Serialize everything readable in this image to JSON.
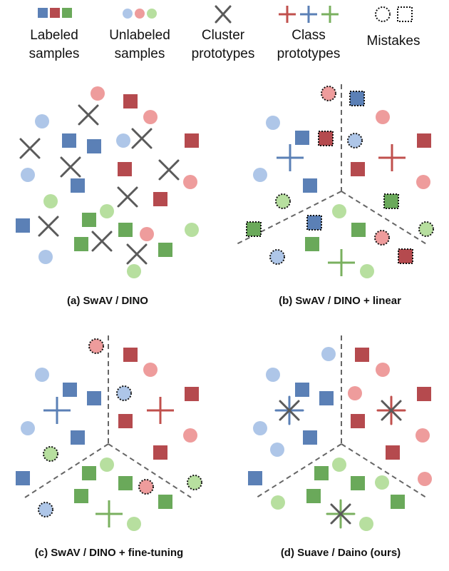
{
  "colors": {
    "blue_fill": "#5b80b6",
    "red_fill": "#b54a4e",
    "green_fill": "#6aa95a",
    "blue_light": "#aec6e8",
    "red_light": "#ee9c9c",
    "green_light": "#b7df9f",
    "cross_gray": "#5a5a5a",
    "boundary_gray": "#666666",
    "class_red": "#c0504d",
    "class_blue": "#5b80b6",
    "class_green": "#7ab05f"
  },
  "legend": {
    "labeled": "Labeled\nsamples",
    "unlabeled": "Unlabeled\nsamples",
    "cluster": "Cluster\nprototypes",
    "class": "Class\nprototypes",
    "mistakes": "Mistakes"
  },
  "panels": [
    {
      "caption": "(a) SwAV / DINO"
    },
    {
      "caption": "(b) SwAV / DINO + linear"
    },
    {
      "caption": "(c) SwAV / DINO + fine-tuning"
    },
    {
      "caption": "(d) Suave / Daino (ours)"
    }
  ]
}
